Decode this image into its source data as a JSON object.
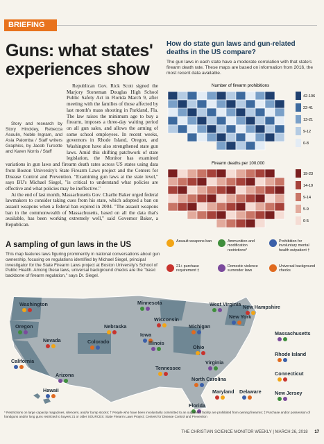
{
  "header": {
    "section": "BRIEFING",
    "title": "Guns: what states' experiences show"
  },
  "article": {
    "paragraphs": [
      "Republican Gov. Rick Scott signed the Marjory Stoneman Douglas High School Public Safety Act in Florida March 9, after meeting with the families of those affected by last month's mass shooting in Parkland, Fla. The law raises the minimum age to buy a firearm, imposes a three-day waiting period on all gun sales, and allows the arming of some school employees. In recent weeks, governors in Rhode Island, Oregon, and Washington have also strengthened state gun laws. Amid this shifting patchwork of state legislation, the Monitor has examined variations in gun laws and firearm death rates across US states using data from Boston University's State Firearm Laws project and the Centers for Disease Control and Prevention. \"Examining gun laws at the state level,\" says BU's Michael Siegel, \"is critical to understand what policies are effective and what policies may be ineffective.\"",
      "At the end of last month, Massachusetts Gov. Charlie Baker urged federal lawmakers to consider taking cues from his state, which adopted a ban on assault weapons when a federal ban expired in 2004. \"The assault weapons ban in the commonwealth of Massachusetts, based on all the data that's available, has been working extremely well,\" said Governor Baker, a Republican."
    ],
    "credit": "Story and research by Story Hinckley, Rebecca Asoulin, Noble Ingram, and Asia Palomba / Staff writers Graphics, by Jacob Turcotte and Karen Norris / Staff"
  },
  "comparison": {
    "title": "How do state gun laws and gun-related deaths in the US compare?",
    "description": "The gun laws in each state have a moderate correlation with that state's firearm death rate. These maps are based on information from 2016, the most recent data available.",
    "maps": [
      {
        "label": "Number of firearm prohibitions",
        "legend": [
          "42-106",
          "22-41",
          "13-21",
          "9-12",
          "0-8"
        ]
      },
      {
        "label": "Firearm deaths per 100,000",
        "legend": [
          "19-23",
          "14-19",
          "9-14",
          "5-9",
          "0-5"
        ]
      }
    ]
  },
  "sampling": {
    "title": "A sampling of gun laws in the US",
    "description": "This map features laws figuring prominently in national conversations about gun ownership, focusing on regulations identified by Michael Siegel, principal investigator for the State Firearm Laws project at Boston University's School of Public Health. Among these laws, universal background checks are the \"basic backbone of firearm regulation,\" says Dr. Siegel.",
    "legend": [
      "Assault weapons ban",
      "Ammunition and modification restrictions*",
      "Prohibition for involuntary mental health outpatient †",
      "21+ purchase requirement ‡",
      "Domestic violence surrender laws",
      "Universal background checks"
    ],
    "states": [
      "Washington",
      "Oregon",
      "California",
      "Nevada",
      "Arizona",
      "Colorado",
      "Nebraska",
      "Minnesota",
      "Iowa",
      "Wisconsin",
      "Illinois",
      "Michigan",
      "Ohio",
      "West Virginia",
      "New York",
      "New Hampshire",
      "Massachusetts",
      "Rhode Island",
      "Connecticut",
      "New Jersey",
      "Delaware",
      "Maryland",
      "Virginia",
      "North Carolina",
      "Tennessee",
      "Florida",
      "Hawaii"
    ],
    "footnote": "* Restrictions on large capacity magazines, silencers, and/or bump stocks; † People who have been involuntarily committed to an outpatient facility are prohibited from owning firearms; ‡ Purchase and/or possession of handguns and/or long guns restricted to buyers 21 or older",
    "sources": "SOURCES: State Firearm Laws Project; Centers for Disease Control and Prevention"
  },
  "footer": {
    "publication": "THE CHRISTIAN SCIENCE MONITOR WEEKLY",
    "date": "MARCH 26, 2018",
    "page": "17"
  }
}
